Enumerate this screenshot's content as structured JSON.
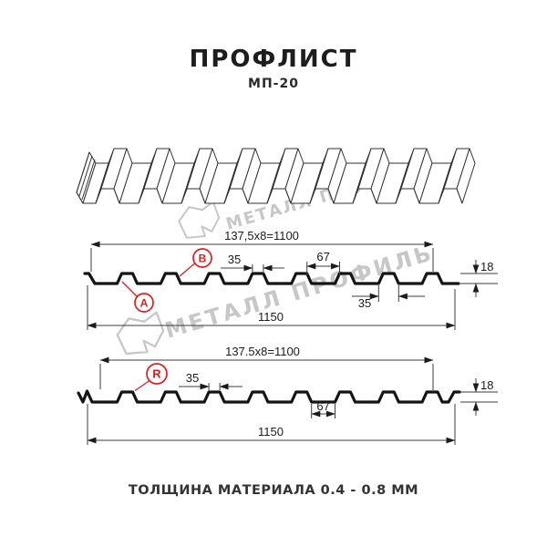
{
  "header": {
    "title": "ПРОФЛИСТ",
    "subtitle": "МП-20"
  },
  "footer": {
    "note": "ТОЛЩИНА МАТЕРИАЛА 0.4 - 0.8 ММ"
  },
  "watermark": {
    "text": "МЕТАЛЛ ПРОФИЛЬ"
  },
  "colors": {
    "accent_red": "#e11b1f",
    "watermark_gray": "#c7c7c7",
    "line_dark": "#141414"
  },
  "section1": {
    "working_width": "137,5x8=1100",
    "rib_top_width": "35",
    "valley_width": "67",
    "height": "18",
    "overall_width": "1150",
    "rib_base_width": "35",
    "labels": {
      "a": "A",
      "b": "B"
    }
  },
  "section2": {
    "working_width": "137.5x8=1100",
    "rib_top_width": "35",
    "valley_width": "67",
    "height": "18",
    "overall_width": "1150",
    "label_r": "R"
  }
}
